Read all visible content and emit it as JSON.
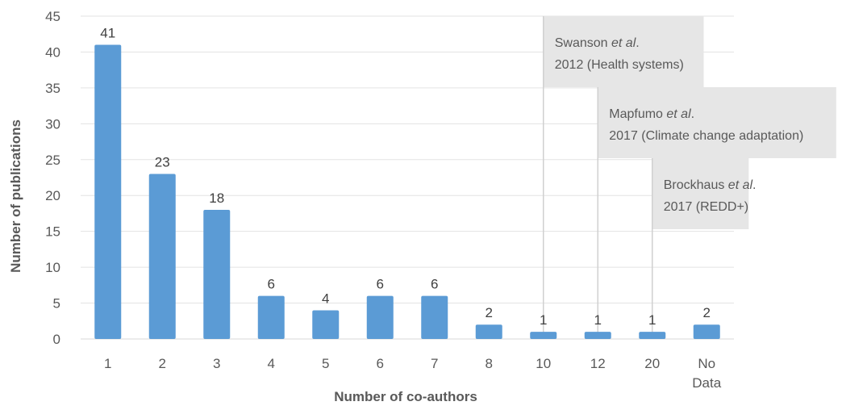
{
  "chart_data": {
    "type": "bar",
    "categories": [
      "1",
      "2",
      "3",
      "4",
      "5",
      "6",
      "7",
      "8",
      "10",
      "12",
      "20",
      "No Data"
    ],
    "values": [
      41,
      23,
      18,
      6,
      4,
      6,
      6,
      2,
      1,
      1,
      1,
      2
    ],
    "data_labels": [
      "41",
      "23",
      "18",
      "6",
      "4",
      "6",
      "6",
      "2",
      "1",
      "1",
      "1",
      "2"
    ],
    "xlabel": "Number of co-authors",
    "ylabel": "Number of publications",
    "ylim": [
      0,
      45
    ],
    "yticks": [
      0,
      5,
      10,
      15,
      20,
      25,
      30,
      35,
      40,
      45
    ],
    "grid": true,
    "bar_color": "#5B9BD5",
    "annotations": [
      {
        "category": "10",
        "line1_prefix": "Swanson ",
        "line1_italic": "et al",
        "line1_suffix": ".",
        "line2": "2012 (Health systems)"
      },
      {
        "category": "12",
        "line1_prefix": "Mapfumo ",
        "line1_italic": "et al",
        "line1_suffix": ".",
        "line2": "2017 (Climate change adaptation)"
      },
      {
        "category": "20",
        "line1_prefix": "Brockhaus ",
        "line1_italic": "et al",
        "line1_suffix": ".",
        "line2": "2017 (REDD+)"
      }
    ]
  }
}
